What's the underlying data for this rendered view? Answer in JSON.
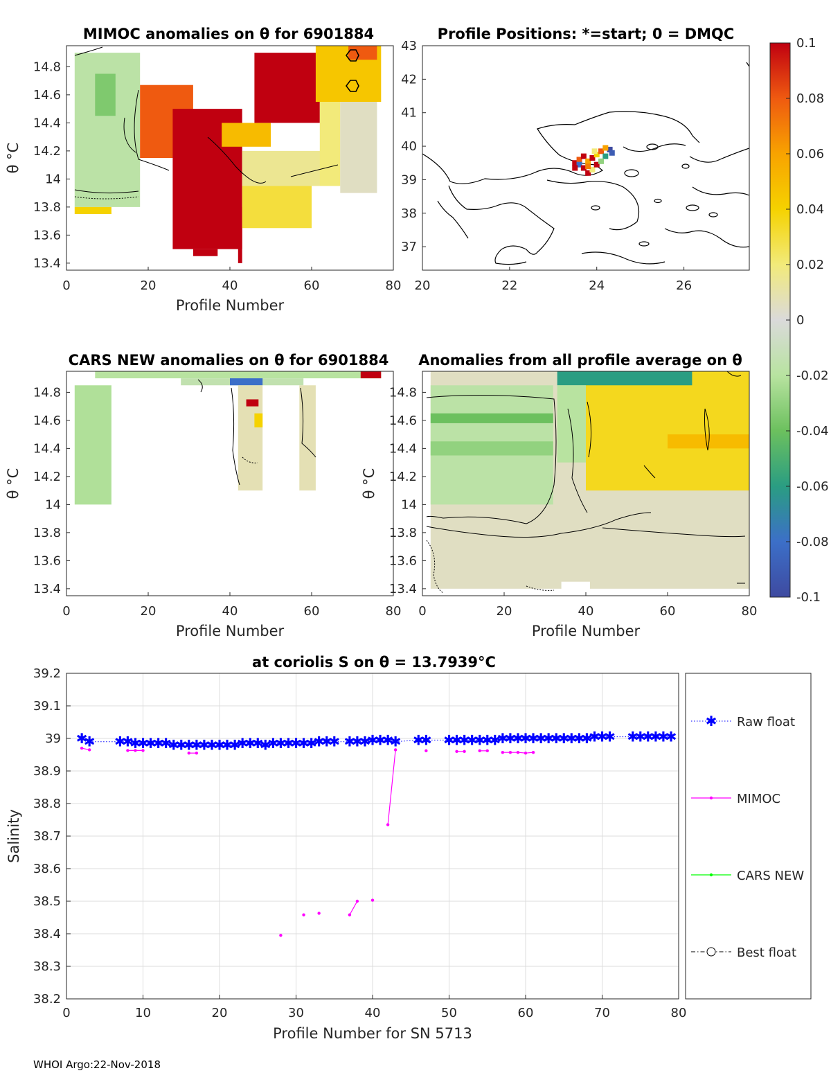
{
  "chart_data": [
    {
      "id": "mimoc",
      "type": "heatmap",
      "title": "MIMOC anomalies on θ  for 6901884",
      "xlabel": "Profile Number",
      "ylabel": "θ °C",
      "xlim": [
        0,
        80
      ],
      "ylim": [
        13.35,
        14.95
      ],
      "xticks": [
        "0",
        "20",
        "40",
        "60",
        "80"
      ],
      "yticks": [
        "13.4",
        "13.6",
        "13.8",
        "14",
        "14.2",
        "14.4",
        "14.6",
        "14.8"
      ],
      "regions": [
        {
          "x": [
            2,
            18
          ],
          "y": [
            14.9,
            13.8
          ],
          "value": -0.018
        },
        {
          "x": [
            7,
            12
          ],
          "y": [
            14.75,
            14.45
          ],
          "value": -0.035
        },
        {
          "x": [
            2,
            11
          ],
          "y": [
            13.8,
            13.75
          ],
          "value": 0.04
        },
        {
          "x": [
            18,
            31
          ],
          "y": [
            14.67,
            14.15
          ],
          "value": 0.08
        },
        {
          "x": [
            26,
            43
          ],
          "y": [
            14.5,
            13.5
          ],
          "value": 0.1
        },
        {
          "x": [
            31,
            37
          ],
          "y": [
            13.5,
            13.45
          ],
          "value": 0.1
        },
        {
          "x": [
            42,
            43
          ],
          "y": [
            13.8,
            13.4
          ],
          "value": 0.1
        },
        {
          "x": [
            38,
            50
          ],
          "y": [
            14.4,
            14.23
          ],
          "value": 0.05
        },
        {
          "x": [
            46,
            62
          ],
          "y": [
            14.9,
            14.4
          ],
          "value": 0.1
        },
        {
          "x": [
            43,
            64
          ],
          "y": [
            14.2,
            13.95
          ],
          "value": 0.015
        },
        {
          "x": [
            43,
            60
          ],
          "y": [
            13.95,
            13.65
          ],
          "value": 0.03
        },
        {
          "x": [
            61,
            77
          ],
          "y": [
            14.95,
            14.55
          ],
          "value": 0.045
        },
        {
          "x": [
            62,
            67
          ],
          "y": [
            14.55,
            13.95
          ],
          "value": 0.02
        },
        {
          "x": [
            67,
            76
          ],
          "y": [
            14.55,
            13.9
          ],
          "value": 0.005
        },
        {
          "x": [
            69,
            76
          ],
          "y": [
            14.95,
            14.85
          ],
          "value": 0.08
        }
      ]
    },
    {
      "id": "positions",
      "type": "scatter",
      "title": "Profile Positions: *=start; 0 = DMQC",
      "xlim": [
        20,
        27.5
      ],
      "ylim": [
        36.3,
        43
      ],
      "xticks": [
        "20",
        "22",
        "24",
        "26"
      ],
      "yticks": [
        "37",
        "38",
        "39",
        "40",
        "41",
        "42",
        "43"
      ],
      "points": [
        {
          "lon": 23.5,
          "lat": 39.5,
          "value": 0.1
        },
        {
          "lon": 23.6,
          "lat": 39.6,
          "value": 0.08
        },
        {
          "lon": 23.7,
          "lat": 39.7,
          "value": 0.1
        },
        {
          "lon": 23.8,
          "lat": 39.55,
          "value": 0.06
        },
        {
          "lon": 23.9,
          "lat": 39.65,
          "value": 0.1
        },
        {
          "lon": 24.0,
          "lat": 39.75,
          "value": 0.04
        },
        {
          "lon": 24.1,
          "lat": 39.85,
          "value": 0.08
        },
        {
          "lon": 24.2,
          "lat": 39.7,
          "value": -0.06
        },
        {
          "lon": 24.3,
          "lat": 39.9,
          "value": -0.1
        },
        {
          "lon": 24.35,
          "lat": 39.8,
          "value": -0.09
        },
        {
          "lon": 23.6,
          "lat": 39.45,
          "value": -0.08
        },
        {
          "lon": 23.7,
          "lat": 39.35,
          "value": 0.1
        },
        {
          "lon": 23.8,
          "lat": 39.2,
          "value": 0.1
        },
        {
          "lon": 23.9,
          "lat": 39.3,
          "value": 0.02
        },
        {
          "lon": 24.0,
          "lat": 39.45,
          "value": 0.1
        },
        {
          "lon": 23.5,
          "lat": 39.35,
          "value": 0.1
        },
        {
          "lon": 24.1,
          "lat": 39.55,
          "value": -0.03
        },
        {
          "lon": 23.8,
          "lat": 39.4,
          "value": 0.07
        },
        {
          "lon": 24.2,
          "lat": 39.95,
          "value": 0.06
        },
        {
          "lon": 23.95,
          "lat": 39.85,
          "value": 0.02
        }
      ]
    },
    {
      "id": "cars",
      "type": "heatmap",
      "title": "CARS NEW anomalies on θ for 6901884",
      "xlabel": "Profile Number",
      "ylabel": "θ °C",
      "xlim": [
        0,
        80
      ],
      "ylim": [
        13.35,
        14.95
      ],
      "xticks": [
        "0",
        "20",
        "40",
        "60",
        "80"
      ],
      "yticks": [
        "13.4",
        "13.6",
        "13.8",
        "14",
        "14.2",
        "14.4",
        "14.6",
        "14.8"
      ],
      "regions": [
        {
          "x": [
            2,
            11
          ],
          "y": [
            14.85,
            14.0
          ],
          "value": -0.022
        },
        {
          "x": [
            7,
            77
          ],
          "y": [
            14.95,
            14.9
          ],
          "value": -0.02
        },
        {
          "x": [
            28,
            58
          ],
          "y": [
            14.9,
            14.85
          ],
          "value": -0.015
        },
        {
          "x": [
            40,
            48
          ],
          "y": [
            14.9,
            14.85
          ],
          "value": -0.08
        },
        {
          "x": [
            72,
            77
          ],
          "y": [
            14.95,
            14.9
          ],
          "value": 0.1
        },
        {
          "x": [
            42,
            48
          ],
          "y": [
            14.85,
            14.1
          ],
          "value": 0.008
        },
        {
          "x": [
            44,
            47
          ],
          "y": [
            14.75,
            14.7
          ],
          "value": 0.1
        },
        {
          "x": [
            57,
            61
          ],
          "y": [
            14.85,
            14.1
          ],
          "value": 0.008
        },
        {
          "x": [
            46,
            48
          ],
          "y": [
            14.65,
            14.55
          ],
          "value": 0.04
        }
      ]
    },
    {
      "id": "allavg",
      "type": "heatmap",
      "title": "Anomalies from all profile average on θ",
      "xlabel": "Profile Number",
      "ylabel": "θ °C",
      "xlim": [
        0,
        80
      ],
      "ylim": [
        13.35,
        14.95
      ],
      "xticks": [
        "0",
        "20",
        "40",
        "60",
        "80"
      ],
      "yticks": [
        "13.4",
        "13.6",
        "13.8",
        "14",
        "14.2",
        "14.4",
        "14.6",
        "14.8"
      ],
      "regions": [
        {
          "x": [
            2,
            80
          ],
          "y": [
            14.95,
            13.4
          ],
          "value": 0.005
        },
        {
          "x": [
            2,
            32
          ],
          "y": [
            14.85,
            14.0
          ],
          "value": -0.018
        },
        {
          "x": [
            2,
            32
          ],
          "y": [
            14.65,
            14.58
          ],
          "value": -0.04
        },
        {
          "x": [
            2,
            32
          ],
          "y": [
            14.45,
            14.35
          ],
          "value": -0.03
        },
        {
          "x": [
            40,
            80
          ],
          "y": [
            14.95,
            14.1
          ],
          "value": 0.035
        },
        {
          "x": [
            60,
            80
          ],
          "y": [
            14.5,
            14.4
          ],
          "value": 0.05
        },
        {
          "x": [
            33,
            66
          ],
          "y": [
            14.95,
            14.85
          ],
          "value": -0.06
        },
        {
          "x": [
            33,
            40
          ],
          "y": [
            14.85,
            14.3
          ],
          "value": -0.02
        },
        {
          "x": [
            34,
            41
          ],
          "y": [
            13.45,
            13.35
          ],
          "value": null
        }
      ]
    },
    {
      "id": "colorbar",
      "type": "colorbar",
      "range": [
        -0.1,
        0.1
      ],
      "ticks": [
        "0.1",
        "0.08",
        "0.06",
        "0.04",
        "0.02",
        "0",
        "-0.02",
        "-0.04",
        "-0.06",
        "-0.08",
        "-0.1"
      ]
    },
    {
      "id": "salinity",
      "type": "line",
      "title": "at coriolis S on θ = 13.7939°C",
      "xlabel": "Profile Number for SN 5713",
      "ylabel": "Salinity",
      "xlim": [
        0,
        80
      ],
      "ylim": [
        38.2,
        39.2
      ],
      "xticks": [
        "0",
        "10",
        "20",
        "30",
        "40",
        "50",
        "60",
        "70",
        "80"
      ],
      "yticks": [
        "38.2",
        "38.3",
        "38.4",
        "38.5",
        "38.6",
        "38.7",
        "38.8",
        "38.9",
        "39",
        "39.1",
        "39.2"
      ],
      "series": [
        {
          "name": "Raw float",
          "color": "#0000ff",
          "x": [
            2,
            3,
            7,
            8,
            9,
            10,
            11,
            12,
            13,
            14,
            15,
            16,
            17,
            18,
            19,
            20,
            21,
            22,
            23,
            24,
            25,
            26,
            27,
            28,
            29,
            30,
            31,
            32,
            33,
            34,
            35,
            37,
            38,
            39,
            40,
            41,
            42,
            43,
            46,
            47,
            50,
            51,
            52,
            53,
            54,
            55,
            56,
            57,
            58,
            59,
            60,
            61,
            62,
            63,
            64,
            65,
            66,
            67,
            68,
            69,
            70,
            71,
            74,
            75,
            76,
            77,
            78,
            79
          ],
          "values": [
            39.0,
            38.99,
            38.99,
            38.99,
            38.985,
            38.985,
            38.985,
            38.985,
            38.985,
            38.98,
            38.98,
            38.98,
            38.98,
            38.98,
            38.98,
            38.98,
            38.98,
            38.98,
            38.985,
            38.985,
            38.985,
            38.98,
            38.985,
            38.985,
            38.985,
            38.985,
            38.985,
            38.985,
            38.99,
            38.99,
            38.99,
            38.99,
            38.99,
            38.99,
            38.995,
            38.995,
            38.995,
            38.99,
            38.995,
            38.995,
            38.995,
            38.995,
            38.995,
            38.995,
            38.995,
            38.995,
            38.995,
            39.0,
            39.0,
            39.0,
            39.0,
            39.0,
            39.0,
            39.0,
            39.0,
            39.0,
            39.0,
            39.0,
            39.0,
            39.005,
            39.005,
            39.005,
            39.005,
            39.005,
            39.005,
            39.005,
            39.005,
            39.005
          ]
        },
        {
          "name": "MIMOC",
          "color": "#ff00ff",
          "segments": [
            {
              "x": [
                2,
                3
              ],
              "values": [
                38.97,
                38.965
              ]
            },
            {
              "x": [
                8,
                9,
                10
              ],
              "values": [
                38.963,
                38.963,
                38.963
              ]
            },
            {
              "x": [
                16,
                17
              ],
              "values": [
                38.955,
                38.955
              ]
            },
            {
              "x": [
                28
              ],
              "values": [
                38.395
              ]
            },
            {
              "x": [
                31
              ],
              "values": [
                38.458
              ]
            },
            {
              "x": [
                33
              ],
              "values": [
                38.463
              ]
            },
            {
              "x": [
                37,
                38
              ],
              "values": [
                38.458,
                38.5
              ]
            },
            {
              "x": [
                40
              ],
              "values": [
                38.503
              ]
            },
            {
              "x": [
                42,
                43
              ],
              "values": [
                38.735,
                38.965
              ]
            },
            {
              "x": [
                47
              ],
              "values": [
                38.962
              ]
            },
            {
              "x": [
                51,
                52
              ],
              "values": [
                38.96,
                38.96
              ]
            },
            {
              "x": [
                54,
                55
              ],
              "values": [
                38.962,
                38.962
              ]
            },
            {
              "x": [
                57,
                58,
                59,
                60,
                61
              ],
              "values": [
                38.957,
                38.957,
                38.957,
                38.955,
                38.957
              ]
            }
          ]
        },
        {
          "name": "CARS NEW",
          "color": "#00ff00",
          "segments": []
        },
        {
          "name": "Best float",
          "color": "#000000",
          "segments": []
        }
      ]
    }
  ],
  "footer": "WHOI Argo:22-Nov-2018"
}
